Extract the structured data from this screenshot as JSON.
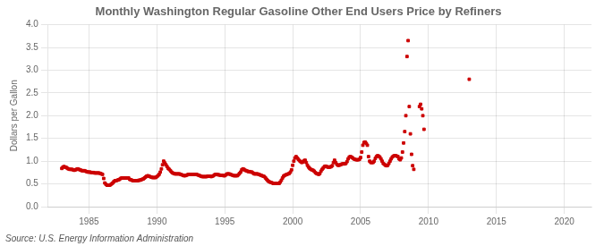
{
  "chart_data": {
    "type": "scatter",
    "title": "Monthly Washington Regular Gasoline Other End Users Price by Refiners",
    "ylabel": "Dollars per Gallon",
    "annotations": [
      "Source: U.S. Energy Information Administration"
    ],
    "color": "#cc0000",
    "marker": "square",
    "grid": true,
    "xlim": [
      1982,
      2022
    ],
    "ylim": [
      0.0,
      4.0
    ],
    "xticks": [
      1985,
      1990,
      1995,
      2000,
      2005,
      2010,
      2015,
      2020
    ],
    "yticks": [
      {
        "value": 0.0,
        "label": "0.0"
      },
      0.5,
      {
        "value": 1.0,
        "label": "1.0"
      },
      1.5,
      {
        "value": 2.0,
        "label": "2.0"
      },
      2.5,
      {
        "value": 3.0,
        "label": "3.0"
      },
      3.5,
      {
        "value": 4.0,
        "label": "4.0"
      }
    ],
    "x": [
      1983.0,
      1983.083,
      1983.167,
      1983.25,
      1983.333,
      1983.417,
      1983.5,
      1983.583,
      1983.667,
      1983.75,
      1983.833,
      1983.917,
      1984.0,
      1984.083,
      1984.167,
      1984.25,
      1984.333,
      1984.417,
      1984.5,
      1984.583,
      1984.667,
      1984.75,
      1984.833,
      1984.917,
      1985.0,
      1985.083,
      1985.167,
      1985.25,
      1985.333,
      1985.417,
      1985.5,
      1985.583,
      1985.667,
      1985.75,
      1985.833,
      1985.917,
      1986.0,
      1986.083,
      1986.167,
      1986.25,
      1986.333,
      1986.417,
      1986.5,
      1986.583,
      1986.667,
      1986.75,
      1986.833,
      1986.917,
      1987.0,
      1987.083,
      1987.167,
      1987.25,
      1987.333,
      1987.417,
      1987.5,
      1987.583,
      1987.667,
      1987.75,
      1987.833,
      1987.917,
      1988.0,
      1988.083,
      1988.167,
      1988.25,
      1988.333,
      1988.417,
      1988.5,
      1988.583,
      1988.667,
      1988.75,
      1988.833,
      1988.917,
      1989.0,
      1989.083,
      1989.167,
      1989.25,
      1989.333,
      1989.417,
      1989.5,
      1989.583,
      1989.667,
      1989.75,
      1989.833,
      1989.917,
      1990.0,
      1990.083,
      1990.167,
      1990.25,
      1990.333,
      1990.417,
      1990.5,
      1990.583,
      1990.667,
      1990.75,
      1990.833,
      1990.917,
      1991.0,
      1991.083,
      1991.167,
      1991.25,
      1991.333,
      1991.417,
      1991.5,
      1991.583,
      1991.667,
      1991.75,
      1991.833,
      1991.917,
      1992.0,
      1992.083,
      1992.167,
      1992.25,
      1992.333,
      1992.417,
      1992.5,
      1992.583,
      1992.667,
      1992.75,
      1992.833,
      1992.917,
      1993.0,
      1993.083,
      1993.167,
      1993.25,
      1993.333,
      1993.417,
      1993.5,
      1993.583,
      1993.667,
      1993.75,
      1993.833,
      1993.917,
      1994.0,
      1994.083,
      1994.167,
      1994.25,
      1994.333,
      1994.417,
      1994.5,
      1994.583,
      1994.667,
      1994.75,
      1994.833,
      1994.917,
      1995.0,
      1995.083,
      1995.167,
      1995.25,
      1995.333,
      1995.417,
      1995.5,
      1995.583,
      1995.667,
      1995.75,
      1995.833,
      1995.917,
      1996.0,
      1996.083,
      1996.167,
      1996.25,
      1996.333,
      1996.417,
      1996.5,
      1996.583,
      1996.667,
      1996.75,
      1996.833,
      1996.917,
      1997.0,
      1997.083,
      1997.167,
      1997.25,
      1997.333,
      1997.417,
      1997.5,
      1997.583,
      1997.667,
      1997.75,
      1997.833,
      1997.917,
      1998.0,
      1998.083,
      1998.167,
      1998.25,
      1998.333,
      1998.417,
      1998.5,
      1998.583,
      1998.667,
      1998.75,
      1998.833,
      1998.917,
      1999.0,
      1999.083,
      1999.167,
      1999.25,
      1999.333,
      1999.417,
      1999.5,
      1999.583,
      1999.667,
      1999.75,
      1999.833,
      1999.917,
      2000.0,
      2000.083,
      2000.167,
      2000.25,
      2000.333,
      2000.417,
      2000.5,
      2000.583,
      2000.667,
      2000.75,
      2000.833,
      2000.917,
      2001.0,
      2001.083,
      2001.167,
      2001.25,
      2001.333,
      2001.417,
      2001.5,
      2001.583,
      2001.667,
      2001.75,
      2001.833,
      2001.917,
      2002.0,
      2002.083,
      2002.167,
      2002.25,
      2002.333,
      2002.417,
      2002.5,
      2002.583,
      2002.667,
      2002.75,
      2002.833,
      2002.917,
      2003.0,
      2003.083,
      2003.167,
      2003.25,
      2003.333,
      2003.417,
      2003.5,
      2003.583,
      2003.667,
      2003.75,
      2003.833,
      2003.917,
      2004.0,
      2004.083,
      2004.167,
      2004.25,
      2004.333,
      2004.417,
      2004.5,
      2004.583,
      2004.667,
      2004.75,
      2004.833,
      2004.917,
      2005.0,
      2005.083,
      2005.167,
      2005.25,
      2005.333,
      2005.417,
      2005.5,
      2005.583,
      2005.667,
      2005.75,
      2005.833,
      2005.917,
      2006.0,
      2006.083,
      2006.167,
      2006.25,
      2006.333,
      2006.417,
      2006.5,
      2006.583,
      2006.667,
      2006.75,
      2006.833,
      2006.917,
      2007.0,
      2007.083,
      2007.167,
      2007.25,
      2007.333,
      2007.417,
      2007.5,
      2007.583,
      2007.667,
      2007.75,
      2007.833,
      2007.917,
      2008.0,
      2008.083,
      2008.167,
      2008.25,
      2008.333,
      2008.417,
      2008.5,
      2008.583,
      2008.667,
      2008.75,
      2008.833,
      2008.917,
      2009.333,
      2009.417,
      2009.5,
      2009.583,
      2009.667,
      2013.0
    ],
    "values": [
      0.84,
      0.87,
      0.88,
      0.87,
      0.86,
      0.84,
      0.83,
      0.82,
      0.82,
      0.82,
      0.81,
      0.8,
      0.81,
      0.82,
      0.83,
      0.82,
      0.81,
      0.8,
      0.79,
      0.79,
      0.79,
      0.78,
      0.77,
      0.76,
      0.76,
      0.76,
      0.75,
      0.75,
      0.75,
      0.74,
      0.74,
      0.74,
      0.74,
      0.74,
      0.73,
      0.72,
      0.71,
      0.62,
      0.52,
      0.49,
      0.47,
      0.47,
      0.47,
      0.48,
      0.5,
      0.52,
      0.55,
      0.57,
      0.57,
      0.58,
      0.59,
      0.6,
      0.62,
      0.63,
      0.63,
      0.63,
      0.63,
      0.63,
      0.63,
      0.63,
      0.6,
      0.59,
      0.58,
      0.57,
      0.57,
      0.57,
      0.57,
      0.57,
      0.58,
      0.58,
      0.59,
      0.6,
      0.61,
      0.63,
      0.65,
      0.67,
      0.68,
      0.67,
      0.66,
      0.65,
      0.64,
      0.64,
      0.64,
      0.64,
      0.66,
      0.68,
      0.71,
      0.76,
      0.83,
      0.92,
      1.0,
      0.96,
      0.92,
      0.88,
      0.84,
      0.82,
      0.79,
      0.76,
      0.74,
      0.73,
      0.72,
      0.72,
      0.72,
      0.72,
      0.72,
      0.71,
      0.7,
      0.69,
      0.68,
      0.68,
      0.69,
      0.7,
      0.71,
      0.71,
      0.71,
      0.71,
      0.71,
      0.71,
      0.71,
      0.71,
      0.7,
      0.69,
      0.68,
      0.67,
      0.66,
      0.66,
      0.66,
      0.66,
      0.66,
      0.67,
      0.67,
      0.67,
      0.66,
      0.67,
      0.68,
      0.7,
      0.71,
      0.71,
      0.7,
      0.7,
      0.69,
      0.69,
      0.69,
      0.68,
      0.68,
      0.7,
      0.72,
      0.72,
      0.72,
      0.71,
      0.7,
      0.69,
      0.68,
      0.68,
      0.68,
      0.68,
      0.7,
      0.73,
      0.76,
      0.81,
      0.83,
      0.82,
      0.8,
      0.79,
      0.78,
      0.77,
      0.77,
      0.76,
      0.76,
      0.74,
      0.72,
      0.72,
      0.72,
      0.72,
      0.71,
      0.7,
      0.69,
      0.68,
      0.67,
      0.66,
      0.63,
      0.6,
      0.57,
      0.55,
      0.54,
      0.53,
      0.52,
      0.51,
      0.51,
      0.51,
      0.51,
      0.51,
      0.51,
      0.54,
      0.58,
      0.63,
      0.67,
      0.69,
      0.7,
      0.71,
      0.72,
      0.73,
      0.76,
      0.81,
      0.91,
      1.0,
      1.07,
      1.1,
      1.07,
      1.04,
      1.01,
      0.99,
      0.97,
      0.98,
      1.01,
      1.02,
      0.97,
      0.91,
      0.87,
      0.84,
      0.82,
      0.81,
      0.8,
      0.78,
      0.75,
      0.73,
      0.72,
      0.71,
      0.73,
      0.78,
      0.82,
      0.85,
      0.88,
      0.89,
      0.88,
      0.87,
      0.87,
      0.87,
      0.88,
      0.9,
      0.97,
      1.02,
      0.97,
      0.93,
      0.91,
      0.91,
      0.92,
      0.93,
      0.94,
      0.94,
      0.94,
      0.95,
      0.99,
      1.05,
      1.09,
      1.1,
      1.09,
      1.07,
      1.05,
      1.04,
      1.03,
      1.03,
      1.03,
      1.04,
      1.08,
      1.2,
      1.35,
      1.41,
      1.42,
      1.39,
      1.35,
      1.1,
      1.0,
      0.97,
      0.97,
      0.97,
      1.0,
      1.06,
      1.1,
      1.12,
      1.11,
      1.09,
      1.05,
      1.0,
      0.95,
      0.93,
      0.91,
      0.9,
      0.91,
      0.95,
      1.0,
      1.05,
      1.09,
      1.11,
      1.12,
      1.12,
      1.11,
      1.1,
      1.05,
      1.03,
      1.07,
      1.2,
      1.4,
      1.65,
      2.0,
      3.3,
      3.65,
      2.2,
      1.6,
      1.15,
      0.9,
      0.82,
      2.2,
      2.25,
      2.15,
      2.0,
      1.7,
      2.8
    ]
  }
}
